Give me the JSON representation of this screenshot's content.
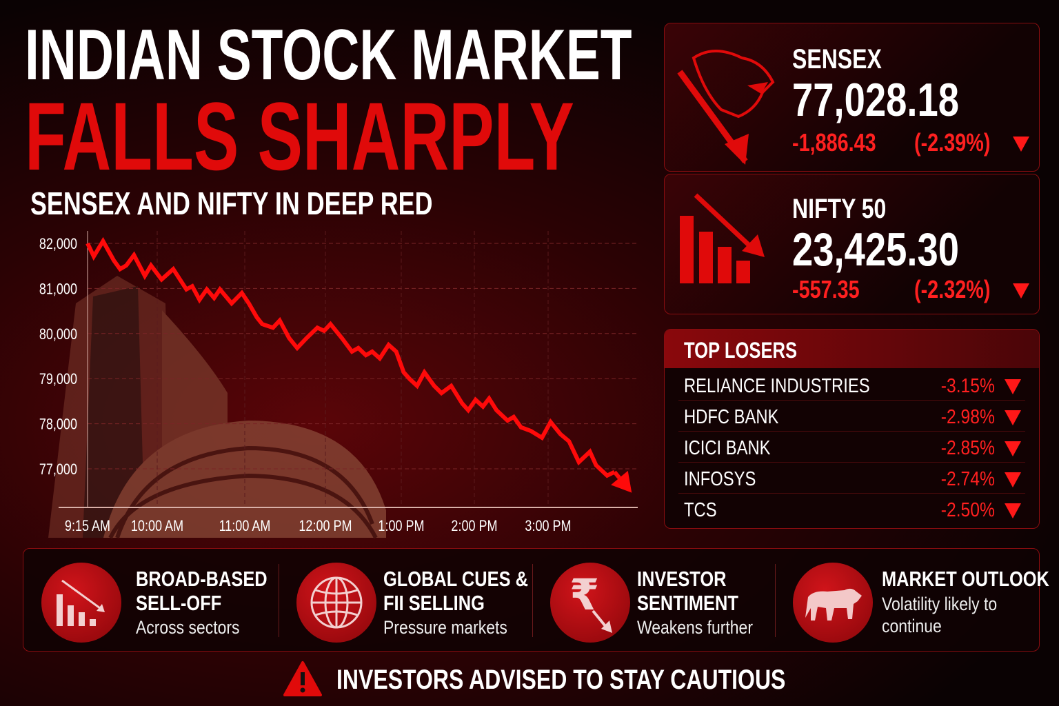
{
  "header": {
    "title_line1": "INDIAN STOCK MARKET",
    "title_line2": "FALLS SHARPLY",
    "subtitle": "SENSEX AND NIFTY IN DEEP RED"
  },
  "colors": {
    "accent": "#e00a0a",
    "background": "#0a0203",
    "panel_border": "#8a0d10"
  },
  "sensex": {
    "label": "SENSEX",
    "value": "77,028.18",
    "change": "-1,886.43",
    "change_pct": "(-2.39%)",
    "icon": "bear-head-icon"
  },
  "nifty": {
    "label": "NIFTY 50",
    "value": "23,425.30",
    "change": "-557.35",
    "change_pct": "(-2.32%)",
    "icon": "falling-bars-icon"
  },
  "top_losers": {
    "title": "TOP LOSERS",
    "items": [
      {
        "name": "RELIANCE INDUSTRIES",
        "change": "-3.15%"
      },
      {
        "name": "HDFC BANK",
        "change": "-2.98%"
      },
      {
        "name": "ICICI BANK",
        "change": "-2.85%"
      },
      {
        "name": "INFOSYS",
        "change": "-2.74%"
      },
      {
        "name": "TCS",
        "change": "-2.50%"
      }
    ]
  },
  "features": [
    {
      "title1": "BROAD-BASED",
      "title2": "SELL-OFF",
      "sub1": "Across sectors",
      "sub2": "",
      "icon": "falling-bars-icon"
    },
    {
      "title1": "GLOBAL CUES &",
      "title2": "FII SELLING",
      "sub1": "Pressure markets",
      "sub2": "",
      "icon": "globe-icon"
    },
    {
      "title1": "INVESTOR",
      "title2": "SENTIMENT",
      "sub1": "Weakens further",
      "sub2": "",
      "icon": "rupee-down-icon"
    },
    {
      "title1": "MARKET OUTLOOK",
      "title2": "",
      "sub1": "Volatility likely to",
      "sub2": "continue",
      "icon": "bear-icon"
    }
  ],
  "warning": {
    "text": "INVESTORS ADVISED TO STAY CAUTIOUS",
    "icon": "warning-icon"
  },
  "chart_data": {
    "type": "line",
    "title": "",
    "xlabel": "",
    "ylabel": "",
    "grid": true,
    "ylim": [
      76300,
      82200
    ],
    "y_ticks": [
      "82,000",
      "81,000",
      "80,000",
      "79,000",
      "78,000",
      "77,000"
    ],
    "y_tick_values": [
      82000,
      81000,
      80000,
      79000,
      78000,
      77000
    ],
    "x_ticks": [
      "9:15 AM",
      "10:00 AM",
      "11:00 AM",
      "12:00 PM",
      "1:00 PM",
      "2:00 PM",
      "3:00 PM"
    ],
    "x_tick_times": [
      "09:15",
      "10:00",
      "11:00",
      "12:00",
      "13:00",
      "14:00",
      "15:00"
    ],
    "series": [
      {
        "color": "#ff0a0a",
        "x": [
          "09:15",
          "09:19",
          "09:25",
          "09:32",
          "09:36",
          "09:40",
          "09:45",
          "09:52",
          "09:56",
          "10:03",
          "10:11",
          "10:20",
          "10:24",
          "10:29",
          "10:34",
          "10:39",
          "10:43",
          "10:51",
          "10:58",
          "11:03",
          "11:09",
          "11:13",
          "11:21",
          "11:26",
          "11:33",
          "11:39",
          "11:46",
          "11:54",
          "11:59",
          "12:04",
          "12:13",
          "12:21",
          "12:26",
          "12:32",
          "12:37",
          "12:43",
          "12:50",
          "12:56",
          "13:02",
          "13:07",
          "13:13",
          "13:19",
          "13:27",
          "13:33",
          "13:41",
          "13:50",
          "13:55",
          "14:01",
          "14:07",
          "14:12",
          "14:18",
          "14:27",
          "14:32",
          "14:38",
          "14:46",
          "14:55",
          "15:02",
          "15:10",
          "15:17",
          "15:25",
          "15:34",
          "15:39",
          "15:48",
          "15:54",
          "16:08"
        ],
        "y": [
          82000,
          81710,
          82050,
          81620,
          81430,
          81510,
          81740,
          81280,
          81510,
          81200,
          81430,
          80980,
          81050,
          80750,
          80980,
          80790,
          80980,
          80670,
          80900,
          80670,
          80360,
          80210,
          80130,
          80290,
          79900,
          79680,
          79900,
          80130,
          80060,
          80210,
          79900,
          79600,
          79680,
          79520,
          79600,
          79450,
          79750,
          79600,
          79140,
          78990,
          78840,
          79140,
          78840,
          78680,
          78840,
          78450,
          78300,
          78530,
          78380,
          78560,
          78300,
          78070,
          78150,
          77920,
          77840,
          77690,
          78040,
          77770,
          77610,
          77150,
          77380,
          77080,
          76850,
          76930,
          76470
        ]
      }
    ]
  }
}
